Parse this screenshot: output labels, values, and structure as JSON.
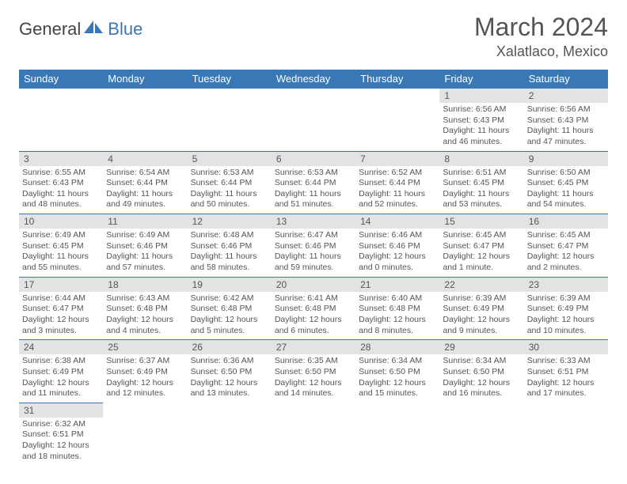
{
  "brand": {
    "part1": "General",
    "part2": "Blue"
  },
  "title": "March 2024",
  "location": "Xalatlaco, Mexico",
  "colors": {
    "header_bg": "#3a78b5",
    "header_fg": "#ffffff",
    "daynum_bg": "#e3e3e3",
    "text": "#555555",
    "border": "#3a78b5",
    "page_bg": "#ffffff"
  },
  "typography": {
    "title_fontsize": 32,
    "location_fontsize": 18,
    "dayheader_fontsize": 13,
    "body_fontsize": 10.5
  },
  "day_headers": [
    "Sunday",
    "Monday",
    "Tuesday",
    "Wednesday",
    "Thursday",
    "Friday",
    "Saturday"
  ],
  "weeks": [
    [
      {
        "n": "",
        "sr": "",
        "ss": "",
        "dl1": "",
        "dl2": ""
      },
      {
        "n": "",
        "sr": "",
        "ss": "",
        "dl1": "",
        "dl2": ""
      },
      {
        "n": "",
        "sr": "",
        "ss": "",
        "dl1": "",
        "dl2": ""
      },
      {
        "n": "",
        "sr": "",
        "ss": "",
        "dl1": "",
        "dl2": ""
      },
      {
        "n": "",
        "sr": "",
        "ss": "",
        "dl1": "",
        "dl2": ""
      },
      {
        "n": "1",
        "sr": "Sunrise: 6:56 AM",
        "ss": "Sunset: 6:43 PM",
        "dl1": "Daylight: 11 hours",
        "dl2": "and 46 minutes."
      },
      {
        "n": "2",
        "sr": "Sunrise: 6:56 AM",
        "ss": "Sunset: 6:43 PM",
        "dl1": "Daylight: 11 hours",
        "dl2": "and 47 minutes."
      }
    ],
    [
      {
        "n": "3",
        "sr": "Sunrise: 6:55 AM",
        "ss": "Sunset: 6:43 PM",
        "dl1": "Daylight: 11 hours",
        "dl2": "and 48 minutes."
      },
      {
        "n": "4",
        "sr": "Sunrise: 6:54 AM",
        "ss": "Sunset: 6:44 PM",
        "dl1": "Daylight: 11 hours",
        "dl2": "and 49 minutes."
      },
      {
        "n": "5",
        "sr": "Sunrise: 6:53 AM",
        "ss": "Sunset: 6:44 PM",
        "dl1": "Daylight: 11 hours",
        "dl2": "and 50 minutes."
      },
      {
        "n": "6",
        "sr": "Sunrise: 6:53 AM",
        "ss": "Sunset: 6:44 PM",
        "dl1": "Daylight: 11 hours",
        "dl2": "and 51 minutes."
      },
      {
        "n": "7",
        "sr": "Sunrise: 6:52 AM",
        "ss": "Sunset: 6:44 PM",
        "dl1": "Daylight: 11 hours",
        "dl2": "and 52 minutes."
      },
      {
        "n": "8",
        "sr": "Sunrise: 6:51 AM",
        "ss": "Sunset: 6:45 PM",
        "dl1": "Daylight: 11 hours",
        "dl2": "and 53 minutes."
      },
      {
        "n": "9",
        "sr": "Sunrise: 6:50 AM",
        "ss": "Sunset: 6:45 PM",
        "dl1": "Daylight: 11 hours",
        "dl2": "and 54 minutes."
      }
    ],
    [
      {
        "n": "10",
        "sr": "Sunrise: 6:49 AM",
        "ss": "Sunset: 6:45 PM",
        "dl1": "Daylight: 11 hours",
        "dl2": "and 55 minutes."
      },
      {
        "n": "11",
        "sr": "Sunrise: 6:49 AM",
        "ss": "Sunset: 6:46 PM",
        "dl1": "Daylight: 11 hours",
        "dl2": "and 57 minutes."
      },
      {
        "n": "12",
        "sr": "Sunrise: 6:48 AM",
        "ss": "Sunset: 6:46 PM",
        "dl1": "Daylight: 11 hours",
        "dl2": "and 58 minutes."
      },
      {
        "n": "13",
        "sr": "Sunrise: 6:47 AM",
        "ss": "Sunset: 6:46 PM",
        "dl1": "Daylight: 11 hours",
        "dl2": "and 59 minutes."
      },
      {
        "n": "14",
        "sr": "Sunrise: 6:46 AM",
        "ss": "Sunset: 6:46 PM",
        "dl1": "Daylight: 12 hours",
        "dl2": "and 0 minutes."
      },
      {
        "n": "15",
        "sr": "Sunrise: 6:45 AM",
        "ss": "Sunset: 6:47 PM",
        "dl1": "Daylight: 12 hours",
        "dl2": "and 1 minute."
      },
      {
        "n": "16",
        "sr": "Sunrise: 6:45 AM",
        "ss": "Sunset: 6:47 PM",
        "dl1": "Daylight: 12 hours",
        "dl2": "and 2 minutes."
      }
    ],
    [
      {
        "n": "17",
        "sr": "Sunrise: 6:44 AM",
        "ss": "Sunset: 6:47 PM",
        "dl1": "Daylight: 12 hours",
        "dl2": "and 3 minutes."
      },
      {
        "n": "18",
        "sr": "Sunrise: 6:43 AM",
        "ss": "Sunset: 6:48 PM",
        "dl1": "Daylight: 12 hours",
        "dl2": "and 4 minutes."
      },
      {
        "n": "19",
        "sr": "Sunrise: 6:42 AM",
        "ss": "Sunset: 6:48 PM",
        "dl1": "Daylight: 12 hours",
        "dl2": "and 5 minutes."
      },
      {
        "n": "20",
        "sr": "Sunrise: 6:41 AM",
        "ss": "Sunset: 6:48 PM",
        "dl1": "Daylight: 12 hours",
        "dl2": "and 6 minutes."
      },
      {
        "n": "21",
        "sr": "Sunrise: 6:40 AM",
        "ss": "Sunset: 6:48 PM",
        "dl1": "Daylight: 12 hours",
        "dl2": "and 8 minutes."
      },
      {
        "n": "22",
        "sr": "Sunrise: 6:39 AM",
        "ss": "Sunset: 6:49 PM",
        "dl1": "Daylight: 12 hours",
        "dl2": "and 9 minutes."
      },
      {
        "n": "23",
        "sr": "Sunrise: 6:39 AM",
        "ss": "Sunset: 6:49 PM",
        "dl1": "Daylight: 12 hours",
        "dl2": "and 10 minutes."
      }
    ],
    [
      {
        "n": "24",
        "sr": "Sunrise: 6:38 AM",
        "ss": "Sunset: 6:49 PM",
        "dl1": "Daylight: 12 hours",
        "dl2": "and 11 minutes."
      },
      {
        "n": "25",
        "sr": "Sunrise: 6:37 AM",
        "ss": "Sunset: 6:49 PM",
        "dl1": "Daylight: 12 hours",
        "dl2": "and 12 minutes."
      },
      {
        "n": "26",
        "sr": "Sunrise: 6:36 AM",
        "ss": "Sunset: 6:50 PM",
        "dl1": "Daylight: 12 hours",
        "dl2": "and 13 minutes."
      },
      {
        "n": "27",
        "sr": "Sunrise: 6:35 AM",
        "ss": "Sunset: 6:50 PM",
        "dl1": "Daylight: 12 hours",
        "dl2": "and 14 minutes."
      },
      {
        "n": "28",
        "sr": "Sunrise: 6:34 AM",
        "ss": "Sunset: 6:50 PM",
        "dl1": "Daylight: 12 hours",
        "dl2": "and 15 minutes."
      },
      {
        "n": "29",
        "sr": "Sunrise: 6:34 AM",
        "ss": "Sunset: 6:50 PM",
        "dl1": "Daylight: 12 hours",
        "dl2": "and 16 minutes."
      },
      {
        "n": "30",
        "sr": "Sunrise: 6:33 AM",
        "ss": "Sunset: 6:51 PM",
        "dl1": "Daylight: 12 hours",
        "dl2": "and 17 minutes."
      }
    ],
    [
      {
        "n": "31",
        "sr": "Sunrise: 6:32 AM",
        "ss": "Sunset: 6:51 PM",
        "dl1": "Daylight: 12 hours",
        "dl2": "and 18 minutes."
      },
      {
        "n": "",
        "sr": "",
        "ss": "",
        "dl1": "",
        "dl2": ""
      },
      {
        "n": "",
        "sr": "",
        "ss": "",
        "dl1": "",
        "dl2": ""
      },
      {
        "n": "",
        "sr": "",
        "ss": "",
        "dl1": "",
        "dl2": ""
      },
      {
        "n": "",
        "sr": "",
        "ss": "",
        "dl1": "",
        "dl2": ""
      },
      {
        "n": "",
        "sr": "",
        "ss": "",
        "dl1": "",
        "dl2": ""
      },
      {
        "n": "",
        "sr": "",
        "ss": "",
        "dl1": "",
        "dl2": ""
      }
    ]
  ]
}
